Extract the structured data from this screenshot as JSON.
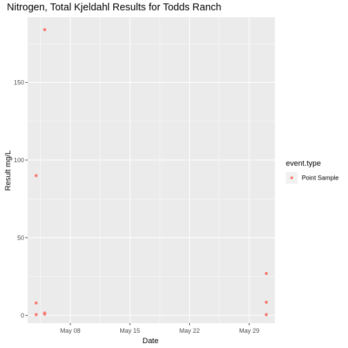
{
  "chart_data": {
    "type": "scatter",
    "title": "Nitrogen, Total Kjeldahl Results for Todds Ranch",
    "xlabel": "Date",
    "ylabel": "Result mg/L",
    "x_tick_labels": [
      "May 08",
      "May 15",
      "May 22",
      "May 29"
    ],
    "x_ticks": [
      "2023-05-08",
      "2023-05-15",
      "2023-05-22",
      "2023-05-29"
    ],
    "y_ticks": [
      0,
      50,
      100,
      150
    ],
    "xlim": [
      "2023-05-03",
      "2023-06-01"
    ],
    "ylim": [
      -5,
      192
    ],
    "grid": true,
    "legend": {
      "title": "event.type",
      "position": "right",
      "entries": [
        "Point Sample"
      ]
    },
    "series": [
      {
        "name": "Point Sample",
        "color": "#F8766D",
        "points": [
          {
            "x": "2023-05-04",
            "y": 90
          },
          {
            "x": "2023-05-04",
            "y": 8
          },
          {
            "x": "2023-05-04",
            "y": 0.5
          },
          {
            "x": "2023-05-05",
            "y": 184
          },
          {
            "x": "2023-05-05",
            "y": 1.5
          },
          {
            "x": "2023-05-05",
            "y": 0.8
          },
          {
            "x": "2023-05-31",
            "y": 27
          },
          {
            "x": "2023-05-31",
            "y": 8.5
          },
          {
            "x": "2023-05-31",
            "y": 0.5
          }
        ]
      }
    ],
    "colors": {
      "panel_background": "#EBEBEB",
      "grid": "#FFFFFF",
      "point": "#F8766D"
    }
  }
}
